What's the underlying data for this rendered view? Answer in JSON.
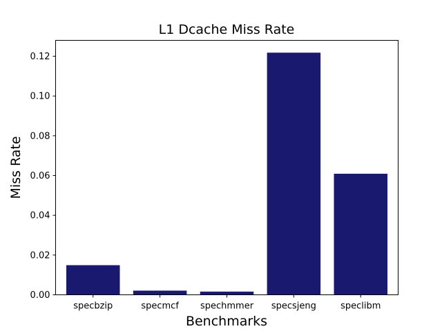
{
  "chart_data": {
    "type": "bar",
    "title": "L1 Dcache Miss Rate",
    "xlabel": "Benchmarks",
    "ylabel": "Miss Rate",
    "categories": [
      "specbzip",
      "specmcf",
      "spechmmer",
      "specsjeng",
      "speclibm"
    ],
    "values": [
      0.0149,
      0.0021,
      0.0016,
      0.1218,
      0.0609
    ],
    "ylim": [
      0,
      0.128
    ],
    "yticks": [
      0.0,
      0.02,
      0.04,
      0.06,
      0.08,
      0.1,
      0.12
    ],
    "ytick_labels": [
      "0.00",
      "0.02",
      "0.04",
      "0.06",
      "0.08",
      "0.10",
      "0.12"
    ],
    "grid": false,
    "bar_color": "#191970"
  }
}
